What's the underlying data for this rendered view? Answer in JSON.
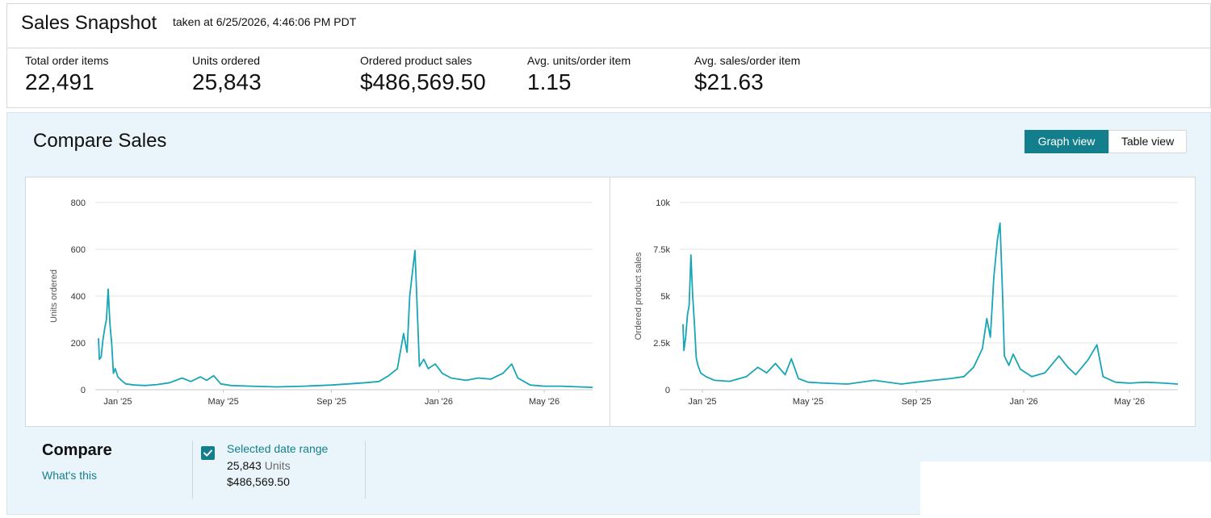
{
  "snapshot": {
    "title": "Sales Snapshot",
    "taken_at": "taken at 6/25/2026, 4:46:06 PM PDT"
  },
  "metrics": [
    {
      "label": "Total order items",
      "value": "22,491"
    },
    {
      "label": "Units ordered",
      "value": "25,843"
    },
    {
      "label": "Ordered product sales",
      "value": "$486,569.50"
    },
    {
      "label": "Avg. units/order item",
      "value": "1.15"
    },
    {
      "label": "Avg. sales/order item",
      "value": "$21.63"
    }
  ],
  "compare": {
    "title": "Compare Sales",
    "graph_view_label": "Graph view",
    "table_view_label": "Table view",
    "footer_label": "Compare",
    "whats_this": "What's this",
    "selected_range_label": "Selected date range",
    "selected_units_value": "25,843",
    "selected_units_word": "Units",
    "selected_sales_value": "$486,569.50"
  },
  "colors": {
    "accent": "#137f8c",
    "line": "#18a5b4",
    "panel_bg": "#eaf4fb"
  },
  "chart_data": [
    {
      "type": "line",
      "ylabel": "Units ordered",
      "ylim": [
        0,
        800
      ],
      "yticks": [
        "0",
        "200",
        "400",
        "600",
        "800"
      ],
      "yticks_values": [
        0,
        200,
        400,
        600,
        800
      ],
      "xticks": [
        "Jan '25",
        "May '25",
        "Sep '25",
        "Jan '26",
        "May '26"
      ],
      "xticks_dates": [
        "2025-01-01",
        "2025-05-01",
        "2025-09-01",
        "2026-01-01",
        "2026-05-01"
      ],
      "xlim": [
        "2024-12-10",
        "2026-06-25"
      ],
      "grid": true,
      "series": [
        {
          "points": [
            [
              "2024-12-10",
              220
            ],
            [
              "2024-12-11",
              130
            ],
            [
              "2024-12-13",
              140
            ],
            [
              "2024-12-15",
              210
            ],
            [
              "2024-12-17",
              260
            ],
            [
              "2024-12-19",
              300
            ],
            [
              "2024-12-21",
              430
            ],
            [
              "2024-12-23",
              280
            ],
            [
              "2024-12-25",
              200
            ],
            [
              "2024-12-27",
              70
            ],
            [
              "2024-12-29",
              90
            ],
            [
              "2025-01-01",
              55
            ],
            [
              "2025-01-05",
              40
            ],
            [
              "2025-01-10",
              25
            ],
            [
              "2025-01-20",
              20
            ],
            [
              "2025-02-01",
              18
            ],
            [
              "2025-02-15",
              22
            ],
            [
              "2025-03-01",
              30
            ],
            [
              "2025-03-15",
              50
            ],
            [
              "2025-03-25",
              35
            ],
            [
              "2025-04-05",
              55
            ],
            [
              "2025-04-12",
              40
            ],
            [
              "2025-04-20",
              60
            ],
            [
              "2025-04-28",
              25
            ],
            [
              "2025-05-10",
              18
            ],
            [
              "2025-06-01",
              15
            ],
            [
              "2025-07-01",
              12
            ],
            [
              "2025-08-01",
              15
            ],
            [
              "2025-09-01",
              20
            ],
            [
              "2025-09-20",
              25
            ],
            [
              "2025-10-10",
              30
            ],
            [
              "2025-10-25",
              35
            ],
            [
              "2025-11-05",
              60
            ],
            [
              "2025-11-15",
              90
            ],
            [
              "2025-11-22",
              240
            ],
            [
              "2025-11-26",
              160
            ],
            [
              "2025-11-29",
              400
            ],
            [
              "2025-12-02",
              500
            ],
            [
              "2025-12-05",
              595
            ],
            [
              "2025-12-08",
              300
            ],
            [
              "2025-12-10",
              100
            ],
            [
              "2025-12-15",
              130
            ],
            [
              "2025-12-20",
              90
            ],
            [
              "2025-12-28",
              110
            ],
            [
              "2026-01-05",
              70
            ],
            [
              "2026-01-15",
              50
            ],
            [
              "2026-02-01",
              40
            ],
            [
              "2026-02-15",
              50
            ],
            [
              "2026-03-01",
              45
            ],
            [
              "2026-03-15",
              70
            ],
            [
              "2026-03-25",
              110
            ],
            [
              "2026-04-01",
              50
            ],
            [
              "2026-04-15",
              20
            ],
            [
              "2026-05-01",
              15
            ],
            [
              "2026-05-20",
              15
            ],
            [
              "2026-06-10",
              12
            ],
            [
              "2026-06-25",
              10
            ]
          ]
        }
      ]
    },
    {
      "type": "line",
      "ylabel": "Ordered product sales",
      "ylim": [
        0,
        10000
      ],
      "yticks": [
        "0",
        "2.5k",
        "5k",
        "7.5k",
        "10k"
      ],
      "yticks_values": [
        0,
        2500,
        5000,
        7500,
        10000
      ],
      "xticks": [
        "Jan '25",
        "May '25",
        "Sep '25",
        "Jan '26",
        "May '26"
      ],
      "xticks_dates": [
        "2025-01-01",
        "2025-05-01",
        "2025-09-01",
        "2026-01-01",
        "2026-05-01"
      ],
      "xlim": [
        "2024-12-10",
        "2026-06-25"
      ],
      "grid": true,
      "series": [
        {
          "points": [
            [
              "2024-12-10",
              3500
            ],
            [
              "2024-12-11",
              2100
            ],
            [
              "2024-12-13",
              2800
            ],
            [
              "2024-12-15",
              4000
            ],
            [
              "2024-12-17",
              4500
            ],
            [
              "2024-12-19",
              7200
            ],
            [
              "2024-12-21",
              5000
            ],
            [
              "2024-12-23",
              3500
            ],
            [
              "2024-12-25",
              1700
            ],
            [
              "2024-12-27",
              1300
            ],
            [
              "2024-12-30",
              900
            ],
            [
              "2025-01-05",
              700
            ],
            [
              "2025-01-15",
              500
            ],
            [
              "2025-02-01",
              450
            ],
            [
              "2025-02-20",
              700
            ],
            [
              "2025-03-05",
              1200
            ],
            [
              "2025-03-15",
              900
            ],
            [
              "2025-03-25",
              1400
            ],
            [
              "2025-04-05",
              800
            ],
            [
              "2025-04-12",
              1650
            ],
            [
              "2025-04-20",
              600
            ],
            [
              "2025-05-01",
              400
            ],
            [
              "2025-05-20",
              350
            ],
            [
              "2025-06-15",
              300
            ],
            [
              "2025-07-15",
              500
            ],
            [
              "2025-08-15",
              300
            ],
            [
              "2025-09-01",
              400
            ],
            [
              "2025-09-20",
              500
            ],
            [
              "2025-10-10",
              600
            ],
            [
              "2025-10-25",
              700
            ],
            [
              "2025-11-05",
              1200
            ],
            [
              "2025-11-15",
              2200
            ],
            [
              "2025-11-20",
              3800
            ],
            [
              "2025-11-24",
              2800
            ],
            [
              "2025-11-28",
              6000
            ],
            [
              "2025-12-02",
              8000
            ],
            [
              "2025-12-05",
              8900
            ],
            [
              "2025-12-08",
              5000
            ],
            [
              "2025-12-10",
              1800
            ],
            [
              "2025-12-15",
              1300
            ],
            [
              "2025-12-20",
              1900
            ],
            [
              "2025-12-28",
              1100
            ],
            [
              "2026-01-10",
              700
            ],
            [
              "2026-01-25",
              900
            ],
            [
              "2026-02-10",
              1800
            ],
            [
              "2026-02-20",
              1200
            ],
            [
              "2026-03-01",
              800
            ],
            [
              "2026-03-15",
              1600
            ],
            [
              "2026-03-25",
              2400
            ],
            [
              "2026-04-01",
              700
            ],
            [
              "2026-04-15",
              400
            ],
            [
              "2026-05-01",
              350
            ],
            [
              "2026-05-20",
              400
            ],
            [
              "2026-06-10",
              350
            ],
            [
              "2026-06-25",
              300
            ]
          ]
        }
      ]
    }
  ]
}
